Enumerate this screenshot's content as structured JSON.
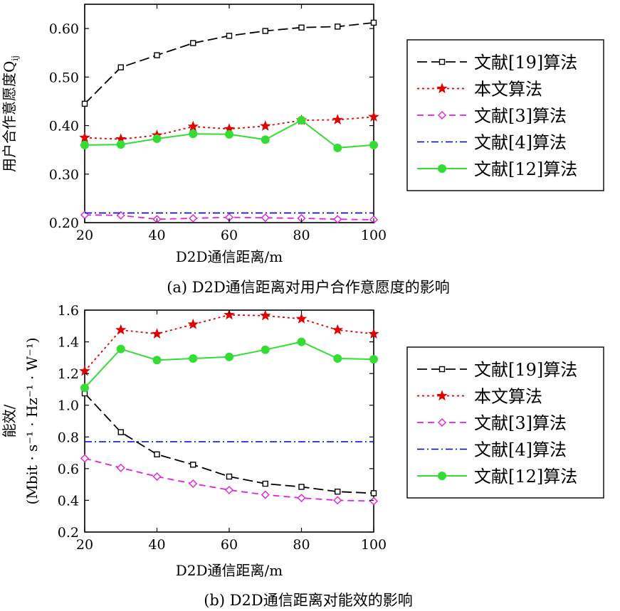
{
  "chart_data": [
    {
      "type": "line",
      "caption": "(a) D2D通信距离对用户合作意愿度的影响",
      "xlabel": "D2D通信距离/m",
      "ylabel": "用户合作意愿度Q",
      "ylabel_sub": "ij",
      "x": [
        20,
        30,
        40,
        50,
        60,
        70,
        80,
        90,
        100
      ],
      "xlim": [
        20,
        100
      ],
      "ylim": [
        0.2,
        0.65
      ],
      "xticks": [
        "20",
        "40",
        "60",
        "80",
        "100"
      ],
      "yticks": [
        "0.20",
        "0.30",
        "0.40",
        "0.50",
        "0.60"
      ],
      "legend_position": "right",
      "series": [
        {
          "name": "文献[19]算法",
          "color": "#000000",
          "values": [
            0.445,
            0.52,
            0.545,
            0.57,
            0.585,
            0.595,
            0.602,
            0.604,
            0.612
          ]
        },
        {
          "name": "本文算法",
          "color": "#e00000",
          "values": [
            0.375,
            0.372,
            0.38,
            0.398,
            0.393,
            0.399,
            0.411,
            0.412,
            0.418
          ]
        },
        {
          "name": "文献[3]算法",
          "color": "#e020e0",
          "values": [
            0.216,
            0.215,
            0.207,
            0.209,
            0.211,
            0.21,
            0.209,
            0.207,
            0.206
          ]
        },
        {
          "name": "文献[4]算法",
          "color": "#0000cc",
          "values": [
            0.22,
            0.22,
            0.22,
            0.22,
            0.22,
            0.22,
            0.22,
            0.22,
            0.22
          ]
        },
        {
          "name": "文献[12]算法",
          "color": "#33dd33",
          "values": [
            0.36,
            0.361,
            0.373,
            0.383,
            0.382,
            0.371,
            0.411,
            0.354,
            0.36
          ]
        }
      ]
    },
    {
      "type": "line",
      "caption": "(b) D2D通信距离对能效的影响",
      "xlabel": "D2D通信距离/m",
      "ylabel": "能效/",
      "ylabel2": "(Mbit · s⁻¹ · Hz⁻¹ · W⁻¹)",
      "x": [
        20,
        30,
        40,
        50,
        60,
        70,
        80,
        90,
        100
      ],
      "xlim": [
        20,
        100
      ],
      "ylim": [
        0.2,
        1.6
      ],
      "xticks": [
        "20",
        "40",
        "60",
        "80",
        "100"
      ],
      "yticks": [
        "0.2",
        "0.4",
        "0.6",
        "0.8",
        "1.0",
        "1.2",
        "1.4",
        "1.6"
      ],
      "legend_position": "right",
      "series": [
        {
          "name": "文献[19]算法",
          "color": "#000000",
          "values": [
            1.075,
            0.83,
            0.69,
            0.625,
            0.55,
            0.505,
            0.485,
            0.455,
            0.445
          ]
        },
        {
          "name": "本文算法",
          "color": "#e00000",
          "values": [
            1.215,
            1.475,
            1.45,
            1.51,
            1.57,
            1.565,
            1.545,
            1.475,
            1.45
          ]
        },
        {
          "name": "文献[3]算法",
          "color": "#e020e0",
          "values": [
            0.665,
            0.605,
            0.55,
            0.505,
            0.465,
            0.435,
            0.415,
            0.4,
            0.395
          ]
        },
        {
          "name": "文献[4]算法",
          "color": "#0000cc",
          "values": [
            0.77,
            0.77,
            0.77,
            0.77,
            0.77,
            0.77,
            0.77,
            0.77,
            0.77
          ]
        },
        {
          "name": "文献[12]算法",
          "color": "#33dd33",
          "values": [
            1.11,
            1.355,
            1.285,
            1.295,
            1.305,
            1.35,
            1.4,
            1.295,
            1.29
          ]
        }
      ]
    }
  ]
}
